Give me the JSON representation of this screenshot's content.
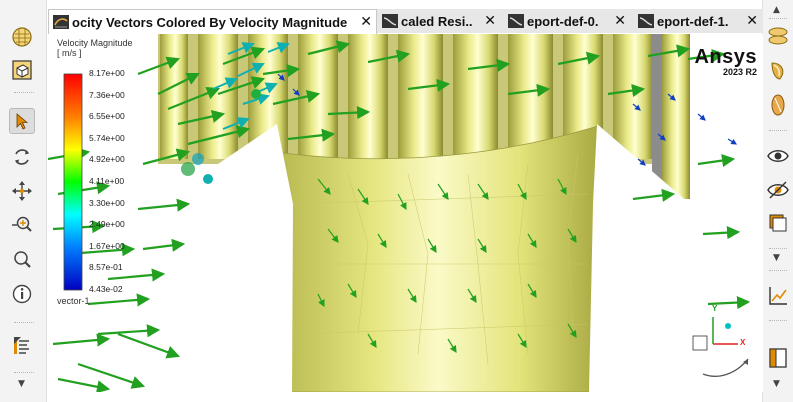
{
  "tabs": [
    {
      "label": "ocity Vectors Colored By Velocity Magnitude",
      "active": true
    },
    {
      "label": "caled Resi..",
      "active": false
    },
    {
      "label": "eport-def-0.",
      "active": false
    },
    {
      "label": "eport-def-1.",
      "active": false
    }
  ],
  "tab_close_glyph": "✕",
  "legend": {
    "title_line1": "Velocity Magnitude",
    "title_line2": "[ m/s ]",
    "labels": [
      "8.17e+00",
      "7.36e+00",
      "6.55e+00",
      "5.74e+00",
      "4.92e+00",
      "4.11e+00",
      "3.30e+00",
      "2.49e+00",
      "1.67e+00",
      "8.57e-01",
      "4.43e-02"
    ],
    "footer": "vector-1"
  },
  "branding": {
    "logo": "Ansys",
    "version": "2023 R2"
  },
  "triad": {
    "y_label": "Y",
    "x_label": "X"
  },
  "left_toolbar": [
    {
      "icon": "sphere-view-icon"
    },
    {
      "icon": "cube-fit-icon"
    },
    {
      "icon": "select-arrow-icon",
      "selected": true
    },
    {
      "icon": "rotate-icon"
    },
    {
      "icon": "pan-icon"
    },
    {
      "icon": "zoom-in-icon"
    },
    {
      "icon": "zoom-box-icon"
    },
    {
      "icon": "probe-info-icon"
    },
    {
      "icon": "legend-icon"
    }
  ],
  "right_toolbar": [
    {
      "icon": "display-surface-icon"
    },
    {
      "icon": "lighting-icon"
    },
    {
      "icon": "shading-icon"
    },
    {
      "icon": "visibility-eye-icon"
    },
    {
      "icon": "hide-eye-icon"
    },
    {
      "icon": "window-icon"
    },
    {
      "icon": "axes-plot-icon"
    },
    {
      "icon": "window-layout-icon"
    }
  ]
}
